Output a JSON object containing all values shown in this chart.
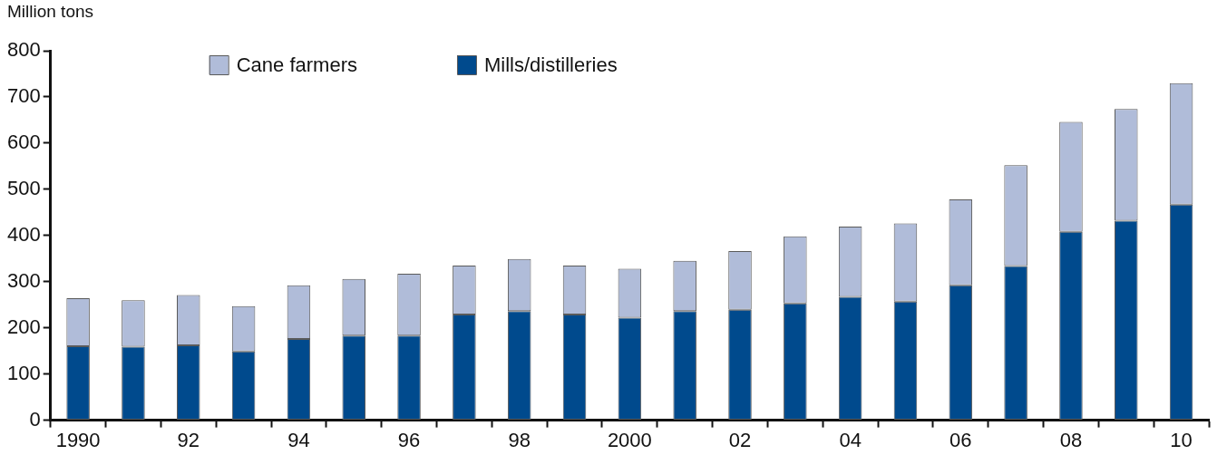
{
  "chart_data": {
    "type": "bar",
    "stacked": true,
    "ylabel": "Million tons",
    "categories": [
      "1990",
      null,
      "92",
      null,
      "94",
      null,
      "96",
      null,
      "98",
      null,
      "2000",
      null,
      "02",
      null,
      "04",
      null,
      "06",
      null,
      "08",
      null,
      "10"
    ],
    "series": [
      {
        "name": "Mills/distilleries",
        "color": "#004a8d",
        "values": [
          160,
          159,
          162,
          149,
          176,
          183,
          183,
          229,
          236,
          229,
          222,
          236,
          239,
          253,
          267,
          257,
          292,
          334,
          408,
          432,
          467
        ]
      },
      {
        "name": "Cane farmers",
        "color": "#b0bcd9",
        "values": [
          104,
          101,
          109,
          98,
          116,
          123,
          134,
          106,
          113,
          106,
          106,
          109,
          127,
          145,
          152,
          169,
          186,
          218,
          238,
          242,
          263
        ]
      }
    ],
    "ylim": [
      0,
      800
    ],
    "yticks": [
      0,
      100,
      200,
      300,
      400,
      500,
      600,
      700,
      800
    ],
    "grid": false,
    "legend": "top"
  }
}
